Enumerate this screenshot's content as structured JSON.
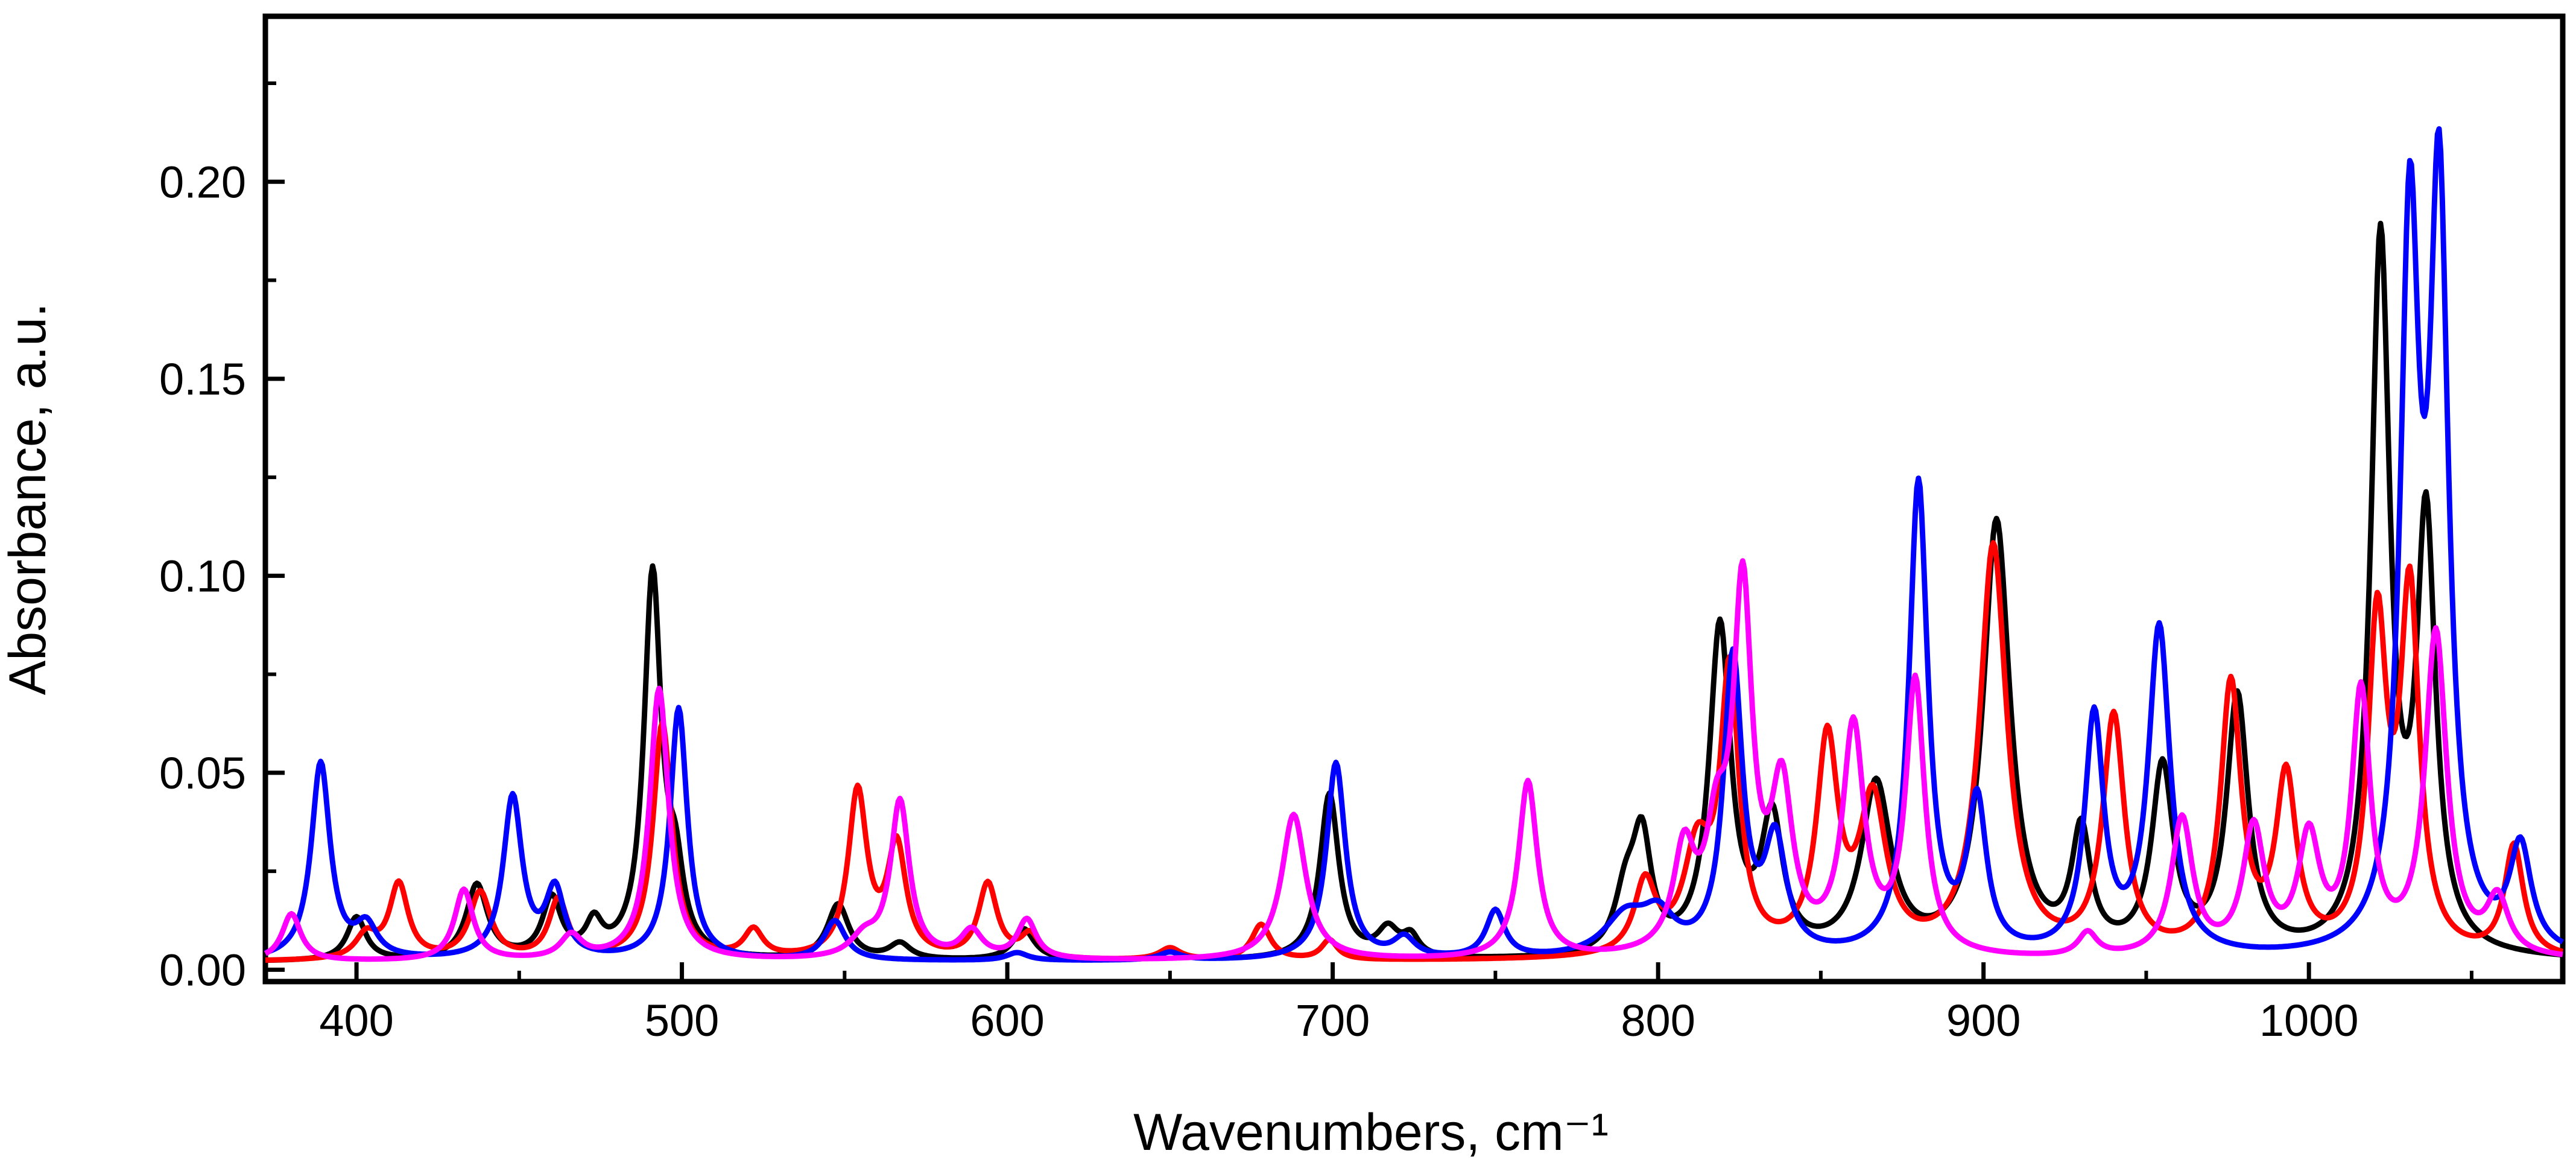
{
  "chart_data": {
    "type": "line",
    "title": "",
    "xlabel": "Wavenumbers, cm⁻¹",
    "ylabel": "Absorbance, a.u.",
    "xlim": [
      372,
      1078
    ],
    "ylim": [
      -0.003,
      0.242
    ],
    "x_ticks": [
      400,
      500,
      600,
      700,
      800,
      900,
      1000
    ],
    "x_tick_labels": [
      "400",
      "500",
      "600",
      "700",
      "800",
      "900",
      "1000"
    ],
    "y_ticks": [
      0.0,
      0.05,
      0.1,
      0.15,
      0.2
    ],
    "y_tick_labels": [
      "0.00",
      "0.05",
      "0.10",
      "0.15",
      "0.20"
    ],
    "grid": false,
    "legend": "none",
    "line_width": 2,
    "series": [
      {
        "name": "black",
        "color": "#000000",
        "peaks": [
          [
            400,
            0.011,
            3.5
          ],
          [
            437,
            0.019,
            4
          ],
          [
            460,
            0.015,
            3.5
          ],
          [
            473,
            0.008,
            3
          ],
          [
            491,
            0.097,
            3.2
          ],
          [
            498,
            0.018,
            3
          ],
          [
            548,
            0.014,
            4
          ],
          [
            567,
            0.004,
            4
          ],
          [
            605,
            0.008,
            4
          ],
          [
            650,
            0.002,
            4
          ],
          [
            699,
            0.042,
            3.5
          ],
          [
            717,
            0.007,
            4
          ],
          [
            724,
            0.005,
            3
          ],
          [
            790,
            0.014,
            4
          ],
          [
            795,
            0.028,
            3.5
          ],
          [
            819,
            0.083,
            4
          ],
          [
            835,
            0.033,
            4
          ],
          [
            867,
            0.043,
            5.5
          ],
          [
            904,
            0.11,
            5
          ],
          [
            930,
            0.03,
            3.5
          ],
          [
            955,
            0.047,
            4
          ],
          [
            978,
            0.065,
            4
          ],
          [
            1022,
            0.18,
            3.5
          ],
          [
            1036,
            0.108,
            3.5
          ]
        ],
        "baseline": 0.002
      },
      {
        "name": "red",
        "color": "#ff0000",
        "peaks": [
          [
            403,
            0.006,
            4
          ],
          [
            413,
            0.019,
            3.5
          ],
          [
            438,
            0.017,
            4
          ],
          [
            462,
            0.015,
            3.5
          ],
          [
            494,
            0.06,
            3.5
          ],
          [
            522,
            0.007,
            3.5
          ],
          [
            554,
            0.042,
            3.5
          ],
          [
            566,
            0.028,
            3.5
          ],
          [
            594,
            0.019,
            3.5
          ],
          [
            607,
            0.006,
            3.5
          ],
          [
            650,
            0.003,
            4
          ],
          [
            678,
            0.009,
            3.5
          ],
          [
            699,
            0.005,
            3
          ],
          [
            796,
            0.018,
            4
          ],
          [
            812,
            0.025,
            5
          ],
          [
            822,
            0.07,
            3.5
          ],
          [
            852,
            0.053,
            4
          ],
          [
            866,
            0.038,
            5
          ],
          [
            903,
            0.104,
            5
          ],
          [
            940,
            0.06,
            4
          ],
          [
            976,
            0.068,
            3.8
          ],
          [
            993,
            0.044,
            3.8
          ],
          [
            1021,
            0.082,
            3.5
          ],
          [
            1031,
            0.09,
            3.5
          ],
          [
            1063,
            0.028,
            3.5
          ]
        ],
        "baseline": 0.002
      },
      {
        "name": "blue",
        "color": "#0000ff",
        "peaks": [
          [
            389,
            0.05,
            3.5
          ],
          [
            403,
            0.008,
            4
          ],
          [
            448,
            0.041,
            3.5
          ],
          [
            461,
            0.017,
            3.5
          ],
          [
            499,
            0.064,
            3.2
          ],
          [
            547,
            0.01,
            4
          ],
          [
            603,
            0.002,
            4
          ],
          [
            650,
            0.002,
            4
          ],
          [
            701,
            0.05,
            3.5
          ],
          [
            722,
            0.005,
            4
          ],
          [
            750,
            0.012,
            3.5
          ],
          [
            790,
            0.01,
            8
          ],
          [
            800,
            0.009,
            6
          ],
          [
            823,
            0.075,
            3.5
          ],
          [
            836,
            0.028,
            4
          ],
          [
            880,
            0.12,
            3.5
          ],
          [
            898,
            0.038,
            3.5
          ],
          [
            934,
            0.06,
            3.5
          ],
          [
            954,
            0.083,
            4
          ],
          [
            1031,
            0.178,
            3.5
          ],
          [
            1040,
            0.187,
            3.5
          ],
          [
            1065,
            0.026,
            4
          ]
        ],
        "baseline": 0.002
      },
      {
        "name": "magenta",
        "color": "#ff00ff",
        "peaks": [
          [
            380,
            0.012,
            3.5
          ],
          [
            433,
            0.018,
            3.5
          ],
          [
            466,
            0.006,
            4
          ],
          [
            493,
            0.069,
            3.5
          ],
          [
            556,
            0.005,
            5
          ],
          [
            567,
            0.04,
            3.5
          ],
          [
            589,
            0.007,
            4
          ],
          [
            606,
            0.01,
            3.5
          ],
          [
            688,
            0.037,
            4.5
          ],
          [
            760,
            0.045,
            3.5
          ],
          [
            808,
            0.025,
            4
          ],
          [
            818,
            0.026,
            4
          ],
          [
            826,
            0.09,
            3.5
          ],
          [
            838,
            0.04,
            4
          ],
          [
            860,
            0.057,
            4
          ],
          [
            879,
            0.069,
            3.5
          ],
          [
            932,
            0.006,
            3.5
          ],
          [
            961,
            0.035,
            4
          ],
          [
            983,
            0.032,
            4
          ],
          [
            1000,
            0.029,
            4
          ],
          [
            1016,
            0.066,
            3.5
          ],
          [
            1039,
            0.082,
            4
          ],
          [
            1058,
            0.014,
            4
          ]
        ],
        "baseline": 0.002
      }
    ]
  }
}
